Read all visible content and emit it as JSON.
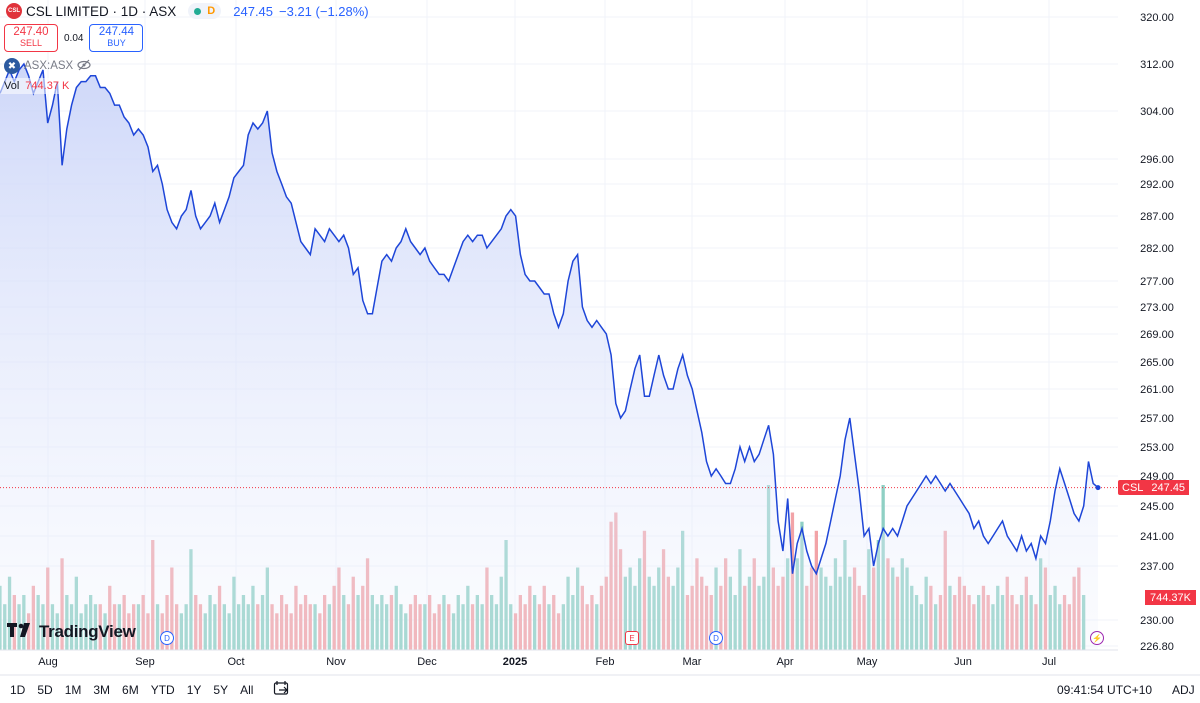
{
  "header": {
    "symbol_title": "CSL LIMITED · 1D · ASX",
    "logo_text": "CSL",
    "market_status": "D",
    "last_price": "247.45",
    "change": "−3.21 (−1.28%)"
  },
  "trade": {
    "sell_price": "247.40",
    "sell_label": "SELL",
    "spread": "0.04",
    "buy_price": "247.44",
    "buy_label": "BUY"
  },
  "compare": {
    "label": "ASX:ASX"
  },
  "volume": {
    "label": "Vol",
    "value": "744.37 K",
    "tag_value": "744.37K"
  },
  "price_tag": {
    "symbol": "CSL",
    "value": "247.45"
  },
  "events": {
    "dividend": "D",
    "earnings": "E",
    "alert": "⚡"
  },
  "branding": {
    "logo_text": "TradingView"
  },
  "bottom_bar": {
    "ranges": [
      "1D",
      "5D",
      "1M",
      "3M",
      "6M",
      "YTD",
      "1Y",
      "5Y",
      "All"
    ],
    "clock": "09:41:54 UTC+10",
    "adj": "ADJ"
  },
  "colors": {
    "line": "#1e46d8",
    "area_top": "#c9d3f8",
    "volume_up": "#8fd0c4",
    "volume_down": "#f2a3a7",
    "price_tag": "#f23645",
    "grid": "#f0f3fa"
  },
  "chart_data": {
    "type": "area",
    "symbol": "CSL",
    "x_ticks": [
      "Aug",
      "Sep",
      "Oct",
      "Nov",
      "Dec",
      "2025",
      "Feb",
      "Mar",
      "Apr",
      "May",
      "Jun",
      "Jul"
    ],
    "y_ticks": [
      320,
      312,
      304,
      296,
      292,
      287,
      282,
      277,
      273,
      269,
      265,
      261,
      257,
      253,
      249,
      245,
      241,
      237,
      230,
      226.8
    ],
    "y_tick_labels": [
      "320.00",
      "312.00",
      "304.00",
      "296.00",
      "292.00",
      "287.00",
      "282.00",
      "277.00",
      "273.00",
      "269.00",
      "265.00",
      "261.00",
      "257.00",
      "253.00",
      "249.00",
      "245.00",
      "241.00",
      "237.00",
      "230.00",
      "226.80"
    ],
    "ylim": [
      226.8,
      320
    ],
    "last_value": 247.45,
    "series": [
      {
        "values": [
          307,
          309,
          311,
          309,
          311,
          312,
          310,
          307,
          309,
          311,
          302,
          305,
          309,
          295,
          301,
          305,
          308,
          309,
          309,
          310,
          310,
          308,
          308,
          307,
          305,
          305,
          303,
          302,
          300,
          301,
          300,
          298,
          294,
          295,
          292,
          288,
          286,
          285,
          287,
          288,
          291,
          287,
          285,
          286,
          287,
          289,
          286,
          288,
          290,
          293,
          294,
          295,
          300,
          302,
          301,
          302,
          304,
          297,
          294,
          292,
          290,
          289,
          286,
          283,
          282,
          281,
          285,
          284,
          283,
          285,
          284,
          283,
          284,
          282,
          278,
          279,
          274,
          272,
          272,
          276,
          280,
          281,
          280,
          282,
          283,
          285,
          283,
          282,
          281,
          282,
          280,
          279,
          278,
          278,
          277,
          279,
          281,
          283,
          284,
          283,
          284,
          284,
          282,
          283,
          284,
          285,
          287,
          288,
          287,
          281,
          278,
          277,
          277,
          276,
          275,
          275,
          272,
          270,
          272,
          277,
          280,
          281,
          273,
          271,
          270,
          271,
          270,
          269,
          266,
          259,
          257,
          258,
          261,
          264,
          266,
          260,
          260,
          263,
          266,
          263,
          261,
          261,
          264,
          266,
          263,
          261,
          258,
          255,
          251,
          249,
          250,
          249,
          248,
          248,
          250,
          253,
          251,
          253,
          251,
          252,
          254,
          256,
          252,
          243,
          239,
          246,
          236,
          240,
          242,
          239,
          237,
          236,
          238,
          240,
          243,
          246,
          249,
          254,
          257,
          252,
          247,
          241,
          242,
          237,
          240,
          242,
          241,
          242,
          241,
          243,
          245,
          246,
          247,
          248,
          249,
          248,
          249,
          248,
          247,
          248,
          247,
          246,
          245,
          244,
          242,
          243,
          241,
          240,
          241,
          242,
          243,
          241,
          240,
          239,
          241,
          239,
          240,
          238,
          241,
          240,
          243,
          247,
          250,
          248,
          246,
          244,
          243,
          245,
          251,
          248,
          247.45
        ]
      }
    ],
    "volume_series": [
      {
        "values": [
          0.7,
          0.5,
          0.8,
          0.6,
          0.5,
          0.6,
          0.4,
          0.7,
          0.6,
          0.5,
          0.9,
          0.5,
          0.4,
          1.0,
          0.6,
          0.5,
          0.8,
          0.4,
          0.5,
          0.6,
          0.5,
          0.5,
          0.4,
          0.7,
          0.5,
          0.5,
          0.6,
          0.4,
          0.5,
          0.5,
          0.6,
          0.4,
          1.2,
          0.5,
          0.4,
          0.6,
          0.9,
          0.5,
          0.4,
          0.5,
          1.1,
          0.6,
          0.5,
          0.4,
          0.6,
          0.5,
          0.7,
          0.5,
          0.4,
          0.8,
          0.5,
          0.6,
          0.5,
          0.7,
          0.5,
          0.6,
          0.9,
          0.5,
          0.4,
          0.6,
          0.5,
          0.4,
          0.7,
          0.5,
          0.6,
          0.5,
          0.5,
          0.4,
          0.6,
          0.5,
          0.7,
          0.9,
          0.6,
          0.5,
          0.8,
          0.6,
          0.7,
          1.0,
          0.6,
          0.5,
          0.6,
          0.5,
          0.6,
          0.7,
          0.5,
          0.4,
          0.5,
          0.6,
          0.5,
          0.5,
          0.6,
          0.4,
          0.5,
          0.6,
          0.5,
          0.4,
          0.6,
          0.5,
          0.7,
          0.5,
          0.6,
          0.5,
          0.9,
          0.6,
          0.5,
          0.8,
          1.2,
          0.5,
          0.4,
          0.6,
          0.5,
          0.7,
          0.6,
          0.5,
          0.7,
          0.5,
          0.6,
          0.4,
          0.5,
          0.8,
          0.6,
          0.9,
          0.7,
          0.5,
          0.6,
          0.5,
          0.7,
          0.8,
          1.4,
          1.5,
          1.1,
          0.8,
          0.9,
          0.7,
          1.0,
          1.3,
          0.8,
          0.7,
          0.9,
          1.1,
          0.8,
          0.7,
          0.9,
          1.3,
          0.6,
          0.7,
          1.0,
          0.8,
          0.7,
          0.6,
          0.9,
          0.7,
          1.0,
          0.8,
          0.6,
          1.1,
          0.7,
          0.8,
          1.0,
          0.7,
          0.8,
          1.8,
          0.9,
          0.7,
          0.8,
          1.0,
          1.5,
          1.0,
          1.4,
          0.7,
          0.9,
          1.3,
          0.9,
          0.8,
          0.7,
          1.0,
          0.8,
          1.2,
          0.8,
          0.9,
          0.7,
          0.6,
          1.1,
          0.9,
          1.2,
          1.8,
          1.0,
          0.9,
          0.8,
          1.0,
          0.9,
          0.7,
          0.6,
          0.5,
          0.8,
          0.7,
          0.5,
          0.6,
          1.3,
          0.7,
          0.6,
          0.8,
          0.7,
          0.6,
          0.5,
          0.6,
          0.7,
          0.6,
          0.5,
          0.7,
          0.6,
          0.8,
          0.6,
          0.5,
          0.6,
          0.8,
          0.6,
          0.5,
          1.0,
          0.9,
          0.6,
          0.7,
          0.5,
          0.6,
          0.5,
          0.8,
          0.9,
          0.6
        ]
      }
    ]
  }
}
